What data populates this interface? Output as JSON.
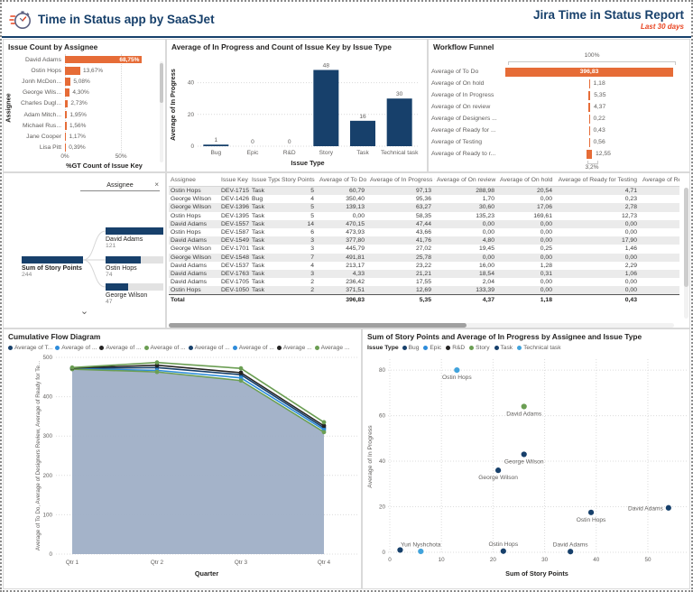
{
  "header": {
    "app_title": "Time in Status app by SaaSJet",
    "report_title": "Jira Time in Status Report",
    "period": "Last 30 days"
  },
  "colors": {
    "orange": "#E66C37",
    "navy": "#17406B",
    "blue": "#2E8CDB",
    "black": "#252423",
    "green": "#6B9E53",
    "light_blue": "#41A3DC",
    "area_fill": "#9FAFC6",
    "accent_red": "#E8431F"
  },
  "chart_data": [
    {
      "type": "bar",
      "orientation": "horizontal",
      "title": "Issue Count by Assignee",
      "categories": [
        "David Adams",
        "Ostin Hops",
        "Jonh McDon...",
        "George Wils...",
        "Charles Dugl...",
        "Adam Mitch...",
        "Michael Rus...",
        "Jane Cooper",
        "Lisa Pitt"
      ],
      "values": [
        68.75,
        13.67,
        5.08,
        4.3,
        2.73,
        1.95,
        1.56,
        1.17,
        0.39
      ],
      "value_labels": [
        "68,75%",
        "13,67%",
        "5,08%",
        "4,30%",
        "2,73%",
        "1,95%",
        "1,56%",
        "1,17%",
        "0,39%"
      ],
      "inside_label_index": 0,
      "xticks": [
        {
          "v": 0,
          "label": "0%"
        },
        {
          "v": 50,
          "label": "50%"
        }
      ],
      "xlim": [
        0,
        70
      ],
      "xlabel": "%GT Count of Issue Key",
      "ylabel": "Assignee",
      "bar_color": "#E66C37"
    },
    {
      "type": "bar",
      "orientation": "vertical",
      "title": "Average of In Progress and Count of Issue Key by Issue Type",
      "categories": [
        "Bug",
        "Epic",
        "R&D",
        "Story",
        "Task",
        "Technical task"
      ],
      "values": [
        1,
        0,
        0,
        48,
        16,
        30
      ],
      "value_labels": [
        "1",
        "0",
        "0",
        "48",
        "16",
        "30"
      ],
      "yticks": [
        0,
        20,
        40
      ],
      "ylim": [
        0,
        50
      ],
      "xlabel": "Issue Type",
      "ylabel": "Average of In Progress",
      "bar_color": "#17406B"
    },
    {
      "type": "funnel",
      "title": "Workflow Funnel",
      "top_label": "100%",
      "bottom_label": "3,2%",
      "max": 396.83,
      "stages": [
        {
          "label": "Average of To Do",
          "value": 396.83,
          "display": "396,83"
        },
        {
          "label": "Average of On hold",
          "value": 1.18,
          "display": "1,18"
        },
        {
          "label": "Average of In Progress",
          "value": 5.35,
          "display": "5,35"
        },
        {
          "label": "Average of On review",
          "value": 4.37,
          "display": "4,37"
        },
        {
          "label": "Average of Designers ...",
          "value": 0.22,
          "display": "0,22"
        },
        {
          "label": "Average of Ready for ...",
          "value": 0.43,
          "display": "0,43"
        },
        {
          "label": "Average of Testing",
          "value": 0.56,
          "display": "0,56"
        },
        {
          "label": "Average of Ready to r...",
          "value": 12.55,
          "display": "12,55"
        }
      ],
      "bar_color": "#E66C37"
    },
    {
      "type": "area",
      "title": "Cumulative Flow Diagram",
      "legend": [
        {
          "label": "Average of T...",
          "color": "#17406B"
        },
        {
          "label": "Average of ...",
          "color": "#2E8CDB"
        },
        {
          "label": "Average of ...",
          "color": "#252423"
        },
        {
          "label": "Average of ...",
          "color": "#6B9E53"
        },
        {
          "label": "Average of ...",
          "color": "#17406B"
        },
        {
          "label": "Average of ...",
          "color": "#2E8CDB"
        },
        {
          "label": "Average ...",
          "color": "#252423"
        },
        {
          "label": "Average ...",
          "color": "#6B9E53"
        }
      ],
      "x": [
        "Qtr 1",
        "Qtr 2",
        "Qtr 3",
        "Qtr 4"
      ],
      "series": [
        {
          "name": "navy",
          "color": "#17406B",
          "values": [
            472,
            474,
            456,
            321
          ]
        },
        {
          "name": "blue",
          "color": "#2E8CDB",
          "values": [
            471,
            467,
            448,
            316
          ]
        },
        {
          "name": "green-low",
          "color": "#6B9E53",
          "values": [
            470,
            463,
            441,
            310
          ]
        },
        {
          "name": "black",
          "color": "#252423",
          "values": [
            473,
            480,
            461,
            326
          ]
        },
        {
          "name": "green-top",
          "color": "#6B9E53",
          "values": [
            474,
            487,
            472,
            335
          ]
        }
      ],
      "area_values": [
        470,
        463,
        441,
        310
      ],
      "area_color": "#9FAFC6",
      "yticks": [
        0,
        100,
        200,
        300,
        400,
        500
      ],
      "ylim": [
        0,
        500
      ],
      "xlabel": "Quarter",
      "ylabel": "Average of To Do, Average of Designers Review, Average of Ready for Te..."
    },
    {
      "type": "scatter",
      "title": "Sum of Story Points and Average of In Progress by Assignee and Issue Type",
      "legend_title": "Issue Type",
      "legend": [
        {
          "label": "Bug",
          "color": "#17406B"
        },
        {
          "label": "Epic",
          "color": "#2E8CDB"
        },
        {
          "label": "R&D",
          "color": "#252423"
        },
        {
          "label": "Story",
          "color": "#6B9E53"
        },
        {
          "label": "Task",
          "color": "#17406B"
        },
        {
          "label": "Technical task",
          "color": "#41A3DC"
        }
      ],
      "points": [
        {
          "x": 13,
          "y": 80,
          "color": "#41A3DC",
          "label": "Ostin Hops",
          "lpos": "below"
        },
        {
          "x": 26,
          "y": 64,
          "color": "#6B9E53",
          "label": "David Adams",
          "lpos": "below"
        },
        {
          "x": 26,
          "y": 43,
          "color": "#17406B",
          "label": "George Wilson",
          "lpos": "below"
        },
        {
          "x": 21,
          "y": 36,
          "color": "#17406B",
          "label": "George Wilson",
          "lpos": "below"
        },
        {
          "x": 54,
          "y": 19.5,
          "color": "#17406B",
          "label": "David Adams",
          "lpos": "left"
        },
        {
          "x": 39,
          "y": 17.5,
          "color": "#17406B",
          "label": "Ostin Hops",
          "lpos": "below"
        },
        {
          "x": 2,
          "y": 1,
          "color": "#17406B",
          "label": "",
          "lpos": "none"
        },
        {
          "x": 6,
          "y": 0.4,
          "color": "#41A3DC",
          "label": "Yuri Nyshchota",
          "lpos": "above"
        },
        {
          "x": 22,
          "y": 0.5,
          "color": "#17406B",
          "label": "Ostin Hops",
          "lpos": "above"
        },
        {
          "x": 35,
          "y": 0.3,
          "color": "#17406B",
          "label": "David Adams",
          "lpos": "above"
        }
      ],
      "xticks": [
        0,
        10,
        20,
        30,
        40,
        50
      ],
      "yticks": [
        0,
        20,
        40,
        60,
        80
      ],
      "xlim": [
        0,
        57
      ],
      "ylim": [
        0,
        84
      ],
      "xlabel": "Sum of Story Points",
      "ylabel": "Average of In Progress"
    }
  ],
  "tree": {
    "field": "Assignee",
    "close": "×",
    "expand_icon": "⌄",
    "root": {
      "label": "Sum of Story Points",
      "value": "244",
      "num": 244
    },
    "children": [
      {
        "label": "David Adams",
        "value": "121",
        "num": 121
      },
      {
        "label": "Ostin Hops",
        "value": "74",
        "num": 74
      },
      {
        "label": "George Wilson",
        "value": "47",
        "num": 47
      }
    ]
  },
  "table": {
    "columns": [
      "Assignee",
      "Issue Key",
      "Issue Type",
      "Story Points",
      "Average of To Do",
      "Average of In Progress",
      "Average of On review",
      "Average of On hold",
      "Average of Ready for Testing",
      "Average of Read"
    ],
    "sort_column_index": 5,
    "sort_icon": "▼",
    "rows": [
      [
        "Ostin Hops",
        "DEV-1715",
        "Task",
        "5",
        "60,79",
        "97,13",
        "288,98",
        "20,54",
        "4,71"
      ],
      [
        "George Wilson",
        "DEV-1426",
        "Bug",
        "4",
        "350,40",
        "95,36",
        "1,70",
        "0,00",
        "0,23"
      ],
      [
        "George Wilson",
        "DEV-1396",
        "Task",
        "5",
        "139,13",
        "63,27",
        "30,60",
        "17,06",
        "2,78"
      ],
      [
        "Ostin Hops",
        "DEV-1395",
        "Task",
        "5",
        "0,00",
        "58,35",
        "135,23",
        "169,61",
        "12,73"
      ],
      [
        "David Adams",
        "DEV-1557",
        "Task",
        "14",
        "470,15",
        "47,44",
        "0,00",
        "0,00",
        "0,00"
      ],
      [
        "Ostin Hops",
        "DEV-1587",
        "Task",
        "6",
        "473,93",
        "43,66",
        "0,00",
        "0,00",
        "0,00"
      ],
      [
        "David Adams",
        "DEV-1549",
        "Task",
        "3",
        "377,80",
        "41,76",
        "4,80",
        "0,00",
        "17,90"
      ],
      [
        "George Wilson",
        "DEV-1701",
        "Task",
        "3",
        "445,79",
        "27,02",
        "19,45",
        "0,25",
        "1,46"
      ],
      [
        "George Wilson",
        "DEV-1548",
        "Task",
        "7",
        "491,81",
        "25,78",
        "0,00",
        "0,00",
        "0,00"
      ],
      [
        "David Adams",
        "DEV-1537",
        "Task",
        "4",
        "213,17",
        "23,22",
        "16,00",
        "1,28",
        "2,29"
      ],
      [
        "David Adams",
        "DEV-1763",
        "Task",
        "3",
        "4,33",
        "21,21",
        "18,54",
        "0,31",
        "1,06"
      ],
      [
        "David Adams",
        "DEV-1705",
        "Task",
        "2",
        "236,42",
        "17,55",
        "2,04",
        "0,00",
        "0,00"
      ],
      [
        "Ostin Hops",
        "DEV-1050",
        "Task",
        "2",
        "371,51",
        "12,69",
        "133,39",
        "0,00",
        "0,00"
      ]
    ],
    "total": {
      "label": "Total",
      "values": [
        "396,83",
        "5,35",
        "4,37",
        "1,18",
        "0,43"
      ]
    }
  }
}
